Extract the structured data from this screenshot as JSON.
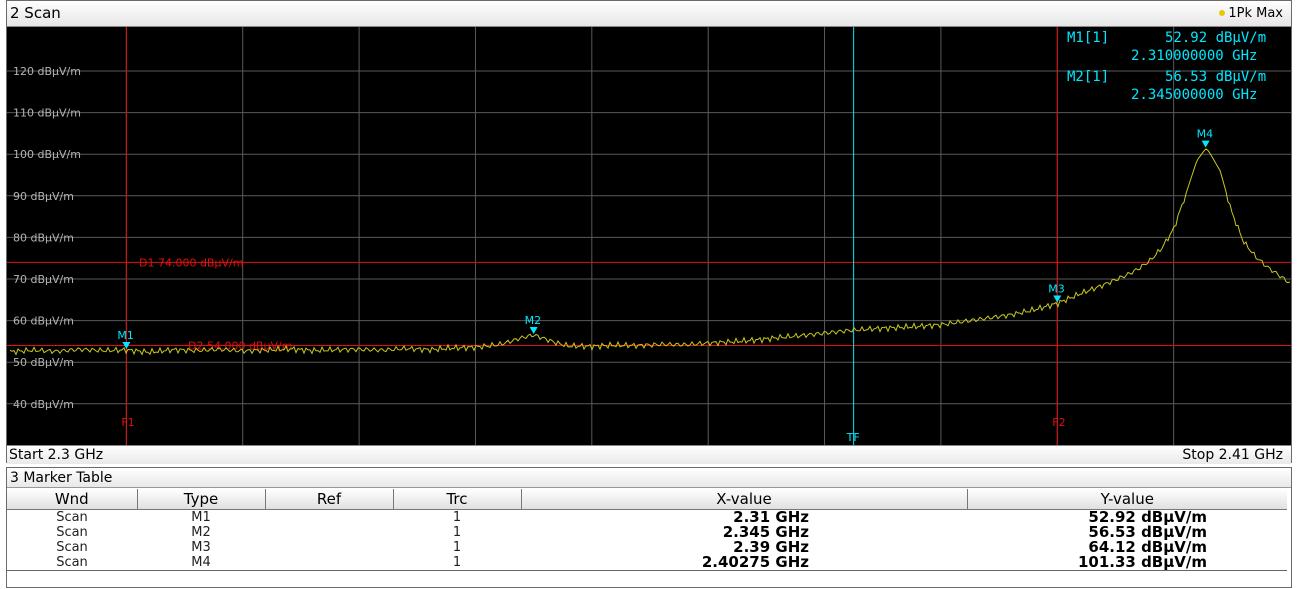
{
  "scan_window": {
    "title": "2 Scan",
    "trace_indicator": "1Pk Max",
    "start_label": "Start 2.3 GHz",
    "stop_label": "Stop 2.41 GHz"
  },
  "marker_info": {
    "m1_label": "M1[1]",
    "m1_level": "52.92 dBµV/m",
    "m1_freq": "2.310000000 GHz",
    "m2_label": "M2[1]",
    "m2_level": "56.53 dBµV/m",
    "m2_freq": "2.345000000 GHz"
  },
  "y_axis_labels": [
    "120 dBµV/m",
    "110 dBµV/m",
    "100 dBµV/m",
    "90 dBµV/m",
    "80 dBµV/m",
    "70 dBµV/m",
    "60 dBµV/m",
    "50 dBµV/m",
    "40 dBµV/m"
  ],
  "display_lines": [
    {
      "label": "D1 74.000 dBµV/m",
      "level": 74
    },
    {
      "label": "D2 54.000 dBµV/m",
      "level": 54
    }
  ],
  "frequency_lines": [
    {
      "label": "F1",
      "freq": 2.31
    },
    {
      "label": "F2",
      "freq": 2.39
    }
  ],
  "trigger_line": {
    "label": "TF",
    "freq": 2.3725
  },
  "markers": [
    {
      "label": "M1",
      "freq": 2.31,
      "level": 52.92
    },
    {
      "label": "M2",
      "freq": 2.345,
      "level": 56.53
    },
    {
      "label": "M3",
      "freq": 2.39,
      "level": 64.12
    },
    {
      "label": "M4",
      "freq": 2.40275,
      "level": 101.33
    }
  ],
  "colors": {
    "trace": "#c8c81e",
    "marker": "#00e8ff",
    "limit_line": "#e01010",
    "grid": "#5a5a5a"
  },
  "marker_table": {
    "title": "3 Marker Table",
    "headers": [
      "Wnd",
      "Type",
      "Ref",
      "Trc",
      "X-value",
      "Y-value"
    ],
    "rows": [
      [
        "Scan",
        "M1",
        "",
        "1",
        "2.31 GHz",
        "52.92 dBµV/m"
      ],
      [
        "Scan",
        "M2",
        "",
        "1",
        "2.345 GHz",
        "56.53 dBµV/m"
      ],
      [
        "Scan",
        "M3",
        "",
        "1",
        "2.39 GHz",
        "64.12 dBµV/m"
      ],
      [
        "Scan",
        "M4",
        "",
        "1",
        "2.40275 GHz",
        "101.33 dBµV/m"
      ]
    ]
  },
  "chart_data": {
    "type": "line",
    "title": "2 Scan",
    "xlabel": "",
    "ylabel": "",
    "xlim": [
      2.3,
      2.41
    ],
    "ylim": [
      30,
      130
    ],
    "x_unit": "GHz",
    "y_unit": "dBµV/m",
    "grid": true,
    "series": [
      {
        "name": "1Pk Max",
        "x": [
          2.3,
          2.302,
          2.304,
          2.306,
          2.308,
          2.31,
          2.312,
          2.314,
          2.316,
          2.318,
          2.32,
          2.322,
          2.324,
          2.326,
          2.328,
          2.33,
          2.332,
          2.334,
          2.336,
          2.338,
          2.34,
          2.342,
          2.343,
          2.344,
          2.345,
          2.346,
          2.347,
          2.348,
          2.35,
          2.352,
          2.354,
          2.356,
          2.358,
          2.36,
          2.362,
          2.364,
          2.366,
          2.368,
          2.37,
          2.372,
          2.374,
          2.376,
          2.378,
          2.38,
          2.382,
          2.384,
          2.386,
          2.388,
          2.39,
          2.392,
          2.394,
          2.396,
          2.397,
          2.398,
          2.399,
          2.4,
          2.401,
          2.402,
          2.40275,
          2.403,
          2.404,
          2.405,
          2.406,
          2.407,
          2.408,
          2.41
        ],
        "y": [
          52.5,
          52.9,
          52.6,
          53.1,
          52.8,
          52.92,
          52.4,
          53.0,
          52.8,
          53.1,
          52.7,
          52.9,
          53.2,
          52.8,
          53.0,
          53.1,
          52.9,
          53.3,
          53.0,
          53.4,
          53.6,
          54.2,
          55.0,
          55.9,
          56.53,
          55.6,
          54.6,
          53.9,
          53.8,
          54.1,
          54.0,
          54.3,
          54.2,
          54.6,
          54.9,
          55.3,
          55.9,
          56.4,
          57.0,
          57.6,
          58.0,
          58.3,
          58.6,
          59.0,
          59.8,
          60.6,
          61.4,
          62.6,
          64.12,
          66.5,
          68.6,
          71.0,
          72.5,
          74.5,
          77.5,
          82.0,
          90.0,
          98.5,
          101.33,
          100.8,
          96.0,
          86.0,
          79.0,
          75.5,
          73.0,
          69.0
        ]
      }
    ]
  }
}
